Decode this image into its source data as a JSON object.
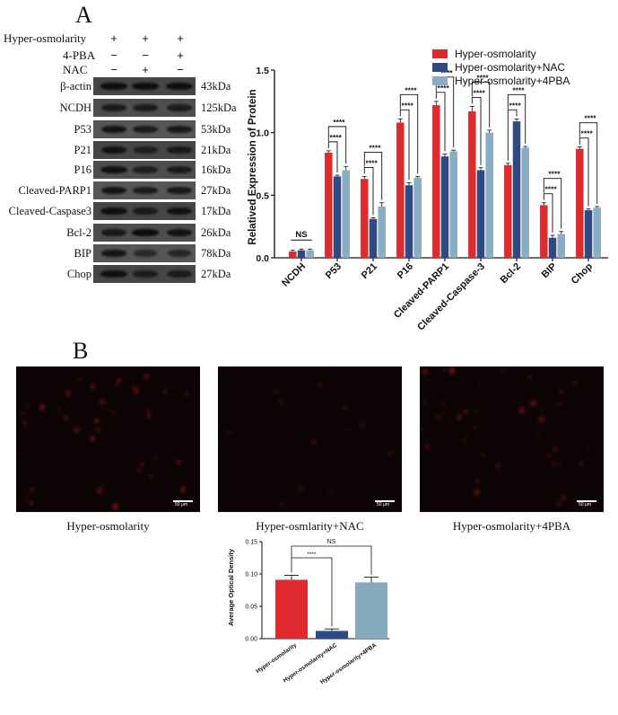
{
  "panel_a": {
    "letter": "A",
    "conditions": [
      {
        "label": "Hyper-osmolarity",
        "signs": [
          "+",
          "+",
          "+"
        ]
      },
      {
        "label": "4-PBA",
        "signs": [
          "−",
          "−",
          "+"
        ]
      },
      {
        "label": "NAC",
        "signs": [
          "−",
          "+",
          "−"
        ]
      }
    ],
    "blot_rows": [
      {
        "protein": "β-actin",
        "kda": "43kDa",
        "bands": [
          0.9,
          0.9,
          0.9
        ]
      },
      {
        "protein": "NCDH",
        "kda": "125kDa",
        "bands": [
          0.6,
          0.6,
          0.6
        ]
      },
      {
        "protein": "P53",
        "kda": "53kDa",
        "bands": [
          0.8,
          0.65,
          0.7
        ]
      },
      {
        "protein": "P21",
        "kda": "21kDa",
        "bands": [
          0.8,
          0.5,
          0.6
        ]
      },
      {
        "protein": "P16",
        "kda": "16kDa",
        "bands": [
          0.85,
          0.55,
          0.65
        ]
      },
      {
        "protein": "Cleaved-PARP1",
        "kda": "27kDa",
        "bands": [
          0.8,
          0.65,
          0.7
        ]
      },
      {
        "protein": "Cleaved-Caspase3",
        "kda": "17kDa",
        "bands": [
          0.85,
          0.6,
          0.8
        ]
      },
      {
        "protein": "Bcl-2",
        "kda": "26kDa",
        "bands": [
          0.7,
          0.95,
          0.8
        ]
      },
      {
        "protein": "BIP",
        "kda": "78kDa",
        "bands": [
          0.8,
          0.4,
          0.45
        ]
      },
      {
        "protein": "Chop",
        "kda": "27kDa",
        "bands": [
          0.85,
          0.55,
          0.55
        ]
      }
    ]
  },
  "panel_b": {
    "letter": "B",
    "images": [
      {
        "caption": "Hyper-osmolarity",
        "scalebar": "50 μm",
        "intensity": 0.75
      },
      {
        "caption": "Hyper-osmlarity+NAC",
        "scalebar": "50 μm",
        "intensity": 0.3
      },
      {
        "caption": "Hyper-osmolarity+4PBA",
        "scalebar": "50 μm",
        "intensity": 0.7
      }
    ]
  },
  "colors": {
    "red": "#dd2b2b",
    "navy": "#2f4a80",
    "lightblue": "#89aec1",
    "bar_b_red": "#e02a2f",
    "bar_b_navy": "#2c4a86",
    "bar_b_blue": "#86aabd"
  },
  "chart_data": [
    {
      "type": "bar",
      "title": "",
      "xlabel": "",
      "ylabel": "Relatived Expression of Protein",
      "ylim": [
        0,
        1.5
      ],
      "yticks": [
        "0.0",
        "0.5",
        "1.0",
        "1.5"
      ],
      "legend_position": "top-right",
      "categories": [
        "NCDH",
        "P53",
        "P21",
        "P16",
        "Cleaved-PARP1",
        "Cleaved-Caspase-3",
        "Bcl-2",
        "BIP",
        "Chop"
      ],
      "series": [
        {
          "name": "Hyper-osmolarity",
          "color": "#dd2b2b",
          "values": [
            0.05,
            0.84,
            0.63,
            1.08,
            1.22,
            1.17,
            0.74,
            0.42,
            0.87
          ],
          "errors": [
            0.01,
            0.015,
            0.02,
            0.03,
            0.03,
            0.04,
            0.015,
            0.02,
            0.015
          ]
        },
        {
          "name": "Hyper-osmolarity+NAC",
          "color": "#2f4a80",
          "values": [
            0.06,
            0.65,
            0.31,
            0.58,
            0.81,
            0.7,
            1.09,
            0.16,
            0.38
          ],
          "errors": [
            0.01,
            0.01,
            0.01,
            0.02,
            0.02,
            0.02,
            0.02,
            0.02,
            0.01
          ]
        },
        {
          "name": "Hyper-osmolarity+4PBA",
          "color": "#89aec1",
          "values": [
            0.06,
            0.7,
            0.41,
            0.64,
            0.85,
            1.0,
            0.88,
            0.19,
            0.4
          ],
          "errors": [
            0.01,
            0.03,
            0.03,
            0.01,
            0.01,
            0.02,
            0.01,
            0.02,
            0.01
          ]
        }
      ],
      "annotations": [
        "NS",
        "****"
      ]
    },
    {
      "type": "bar",
      "title": "",
      "xlabel": "",
      "ylabel": "Average Optical Density",
      "ylim": [
        0,
        0.15
      ],
      "yticks": [
        "0.00",
        "0.05",
        "0.10",
        "0.15"
      ],
      "categories": [
        "Hyper-osmolarity",
        "Hyper-osmolarity+NAC",
        "Hyper-osmolarity+4PBA"
      ],
      "values": [
        0.091,
        0.012,
        0.087
      ],
      "errors": [
        0.007,
        0.003,
        0.008
      ],
      "annotations": [
        "****",
        "NS"
      ]
    }
  ]
}
